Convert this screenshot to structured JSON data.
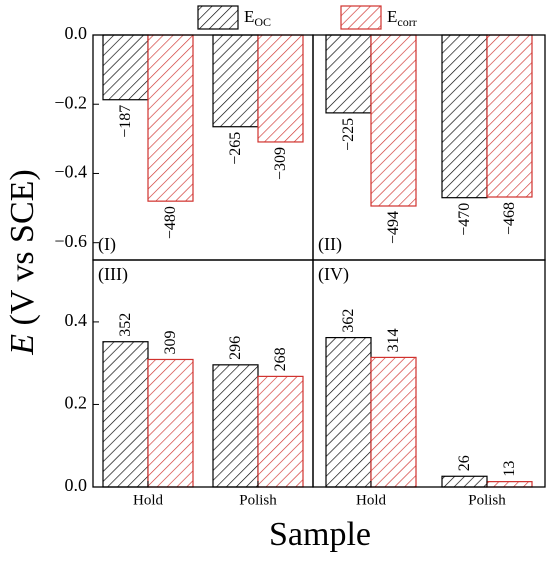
{
  "chart_data": [
    {
      "type": "bar",
      "title": "(I)",
      "ylim": [
        -0.65,
        0
      ],
      "yticks": [
        {
          "value": 0,
          "label": "0.0"
        },
        {
          "value": -0.2,
          "label": "−0.2"
        },
        {
          "value": -0.4,
          "label": "−0.4"
        },
        {
          "value": -0.6,
          "label": "−0.6"
        }
      ],
      "series": [
        {
          "values": [
            -0.187,
            -0.265
          ],
          "value_labels": [
            "−187",
            "−265"
          ]
        },
        {
          "values": [
            -0.48,
            -0.309
          ],
          "value_labels": [
            "−480",
            "−309"
          ]
        }
      ]
    },
    {
      "type": "bar",
      "title": "(II)",
      "ylim": [
        -0.65,
        0
      ],
      "series": [
        {
          "values": [
            -0.225,
            -0.47
          ],
          "value_labels": [
            "−225",
            "−470"
          ]
        },
        {
          "values": [
            -0.494,
            -0.468
          ],
          "value_labels": [
            "−494",
            "−468"
          ]
        }
      ]
    },
    {
      "type": "bar",
      "title": "(III)",
      "ylim": [
        0,
        0.55
      ],
      "yticks": [
        {
          "value": 0,
          "label": "0.0"
        },
        0.2,
        0.4
      ],
      "categories": [
        "Hold",
        "Polish"
      ],
      "series": [
        {
          "values": [
            0.352,
            0.296
          ],
          "value_labels": [
            "352",
            "296"
          ]
        },
        {
          "values": [
            0.309,
            0.268
          ],
          "value_labels": [
            "309",
            "268"
          ]
        }
      ]
    },
    {
      "type": "bar",
      "title": "(IV)",
      "ylim": [
        0,
        0.55
      ],
      "categories": [
        "Hold",
        "Polish"
      ],
      "series": [
        {
          "values": [
            0.362,
            0.026
          ],
          "value_labels": [
            "362",
            "26"
          ]
        },
        {
          "values": [
            0.314,
            0.013
          ],
          "value_labels": [
            "314",
            "13"
          ]
        }
      ]
    }
  ],
  "legend": [
    {
      "name": "E",
      "subscript": "OC",
      "color": "#000000"
    },
    {
      "name": "E",
      "subscript": "corr",
      "color": "#d0312d"
    }
  ],
  "xlabel": "Sample",
  "ylabel": {
    "symbol": "E",
    "text": " (V vs SCE)"
  }
}
